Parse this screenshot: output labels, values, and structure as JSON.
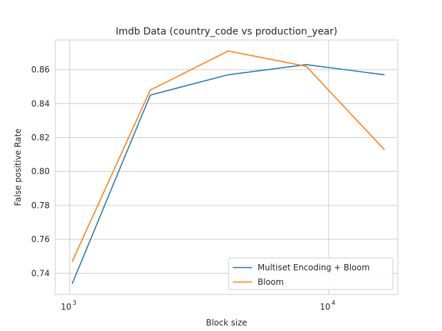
{
  "chart_data": {
    "type": "line",
    "title": "Imdb Data (country_code vs production_year)",
    "xlabel": "Block size",
    "ylabel": "False positive Rate",
    "xscale": "log",
    "xlim": [
      880,
      18500
    ],
    "ylim": [
      0.7275,
      0.8775
    ],
    "x": [
      1024,
      2048,
      4096,
      8192,
      16384
    ],
    "xticks": [
      {
        "value": 1000,
        "base": "10",
        "exp": "3"
      },
      {
        "value": 10000,
        "base": "10",
        "exp": "4"
      }
    ],
    "yticks": [
      0.74,
      0.76,
      0.78,
      0.8,
      0.82,
      0.84,
      0.86
    ],
    "ytick_labels": [
      "0.74",
      "0.76",
      "0.78",
      "0.80",
      "0.82",
      "0.84",
      "0.86"
    ],
    "grid": true,
    "legend_position": "lower-right",
    "series": [
      {
        "name": "Multiset Encoding + Bloom",
        "color": "#1f77b4",
        "values": [
          0.734,
          0.845,
          0.857,
          0.863,
          0.857
        ]
      },
      {
        "name": "Bloom",
        "color": "#ff7f0e",
        "values": [
          0.747,
          0.848,
          0.871,
          0.862,
          0.813
        ]
      }
    ]
  }
}
